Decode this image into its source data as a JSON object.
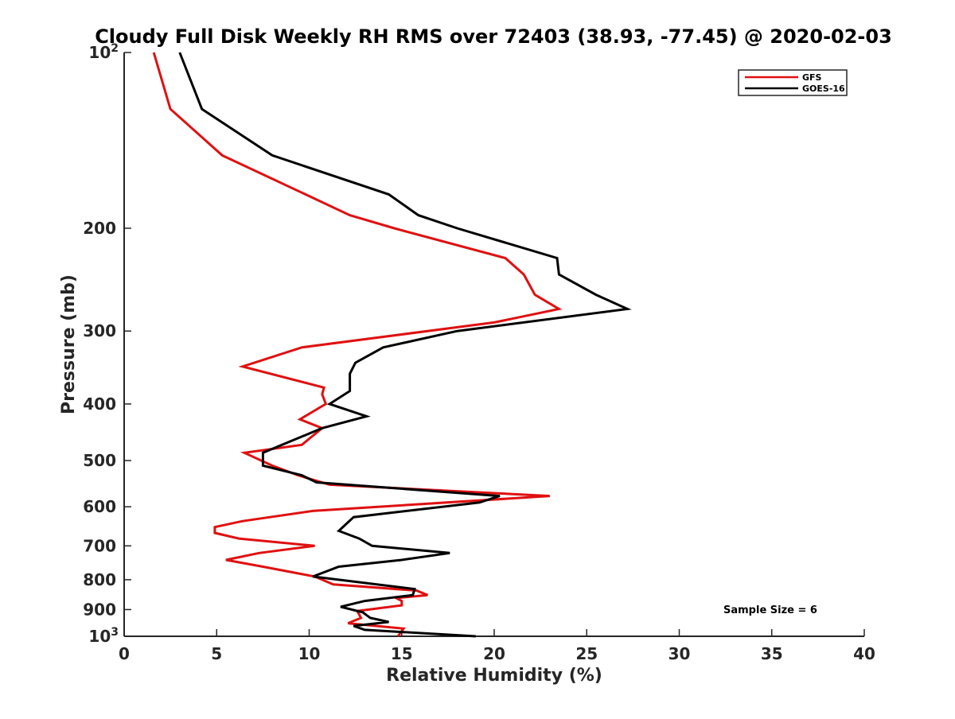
{
  "chart_data": {
    "type": "line",
    "title": "Cloudy Full Disk Weekly RH RMS over 72403 (38.93, -77.45) @ 2020-02-03",
    "xlabel": "Relative Humidity (%)",
    "ylabel": "Pressure (mb)",
    "xlim": [
      0,
      40
    ],
    "ylim": [
      100,
      1000
    ],
    "y_scale": "log",
    "y_reversed": true,
    "grid": false,
    "legend_position": "top-right",
    "x_ticks": [
      "0",
      "5",
      "10",
      "15",
      "20",
      "25",
      "30",
      "35",
      "40"
    ],
    "y_ticks": [
      {
        "value": 100,
        "base": "10",
        "exp": "2"
      },
      {
        "value": 200,
        "label": "200"
      },
      {
        "value": 300,
        "label": "300"
      },
      {
        "value": 400,
        "label": "400"
      },
      {
        "value": 500,
        "label": "500"
      },
      {
        "value": 600,
        "label": "600"
      },
      {
        "value": 700,
        "label": "700"
      },
      {
        "value": 800,
        "label": "800"
      },
      {
        "value": 900,
        "label": "900"
      },
      {
        "value": 1000,
        "base": "10",
        "exp": "3"
      }
    ],
    "series": [
      {
        "name": "GFS",
        "color": "#e01010",
        "points": [
          [
            1.6,
            100
          ],
          [
            2.5,
            125
          ],
          [
            5.3,
            150
          ],
          [
            9.8,
            175
          ],
          [
            12.2,
            190
          ],
          [
            14.6,
            200
          ],
          [
            20.6,
            225
          ],
          [
            21.6,
            240
          ],
          [
            22.2,
            260
          ],
          [
            23.5,
            275
          ],
          [
            20.0,
            290
          ],
          [
            9.6,
            320
          ],
          [
            6.4,
            345
          ],
          [
            10.8,
            375
          ],
          [
            10.7,
            385
          ],
          [
            10.9,
            400
          ],
          [
            9.5,
            425
          ],
          [
            10.7,
            440
          ],
          [
            9.6,
            470
          ],
          [
            6.5,
            485
          ],
          [
            8.0,
            510
          ],
          [
            9.4,
            530
          ],
          [
            11.1,
            550
          ],
          [
            23.0,
            575
          ],
          [
            10.2,
            610
          ],
          [
            6.4,
            635
          ],
          [
            4.9,
            650
          ],
          [
            4.9,
            665
          ],
          [
            6.2,
            680
          ],
          [
            10.3,
            700
          ],
          [
            7.3,
            720
          ],
          [
            5.5,
            740
          ],
          [
            7.5,
            760
          ],
          [
            10.3,
            790
          ],
          [
            11.3,
            815
          ],
          [
            15.8,
            835
          ],
          [
            16.4,
            850
          ],
          [
            14.7,
            860
          ],
          [
            15.0,
            870
          ],
          [
            15.0,
            885
          ],
          [
            12.6,
            905
          ],
          [
            12.8,
            930
          ],
          [
            12.1,
            950
          ],
          [
            15.1,
            970
          ],
          [
            14.8,
            1000
          ]
        ]
      },
      {
        "name": "GOES-16",
        "color": "#000000",
        "points": [
          [
            3.0,
            100
          ],
          [
            4.2,
            125
          ],
          [
            8.0,
            150
          ],
          [
            14.3,
            175
          ],
          [
            15.9,
            190
          ],
          [
            18.0,
            200
          ],
          [
            23.4,
            225
          ],
          [
            23.5,
            240
          ],
          [
            25.5,
            260
          ],
          [
            27.2,
            275
          ],
          [
            18.0,
            300
          ],
          [
            14.0,
            320
          ],
          [
            12.5,
            340
          ],
          [
            12.2,
            355
          ],
          [
            12.2,
            380
          ],
          [
            11.1,
            400
          ],
          [
            13.1,
            420
          ],
          [
            10.7,
            440
          ],
          [
            7.5,
            485
          ],
          [
            7.5,
            510
          ],
          [
            9.6,
            530
          ],
          [
            10.4,
            545
          ],
          [
            20.3,
            575
          ],
          [
            19.2,
            590
          ],
          [
            12.4,
            625
          ],
          [
            11.6,
            660
          ],
          [
            12.7,
            680
          ],
          [
            13.4,
            700
          ],
          [
            17.6,
            720
          ],
          [
            15.0,
            740
          ],
          [
            11.6,
            760
          ],
          [
            10.2,
            790
          ],
          [
            15.7,
            830
          ],
          [
            15.6,
            850
          ],
          [
            13.0,
            870
          ],
          [
            11.7,
            890
          ],
          [
            12.9,
            910
          ],
          [
            13.3,
            930
          ],
          [
            14.3,
            945
          ],
          [
            12.4,
            960
          ],
          [
            13.0,
            975
          ],
          [
            19.0,
            1000
          ]
        ]
      }
    ],
    "legend": [
      {
        "label": "GFS",
        "color": "#e01010"
      },
      {
        "label": "GOES-16",
        "color": "#000000"
      }
    ],
    "annotations": [
      {
        "text": "Sample Size = 6"
      }
    ]
  }
}
